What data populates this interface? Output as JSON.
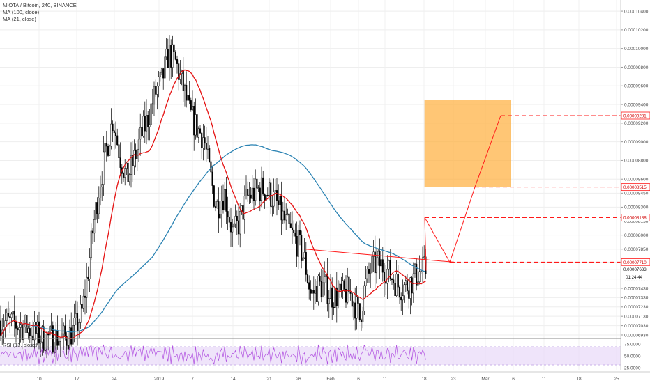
{
  "legend": {
    "symbol": "MIOTA / Bitcoin, 240, BINANCE",
    "ma100": "MA (100, close)",
    "ma21": "MA (21, close)",
    "rsi": "RSI (13, close)"
  },
  "colors": {
    "candle": "#000000",
    "ma21": "#e51212",
    "ma100": "#2b83b3",
    "drawing": "#ff1a1a",
    "target_box": "#ffb347",
    "rsi_band": "#e8d8f8",
    "rsi_line": "#b04ee0"
  },
  "chart_data": [
    {
      "type": "candlestick",
      "y_axis_ticks": [
        "0.00010400",
        "0.00010200",
        "0.00010000",
        "0.00009800",
        "0.00009600",
        "0.00009400",
        "0.00009200",
        "0.00009000",
        "0.00008800",
        "0.00008600",
        "0.00008450",
        "0.00008300",
        "0.00008150",
        "0.00008000",
        "0.00007850",
        "0.00007710",
        "0.00007633",
        "0.00007530",
        "0.00007430",
        "0.00007330",
        "0.00007230",
        "0.00007130",
        "0.00007030",
        "0.00006930"
      ],
      "x_axis_ticks": [
        "10",
        "17",
        "24",
        "2019",
        "7",
        "14",
        "21",
        "26",
        "Feb",
        "6",
        "11",
        "18",
        "23",
        "Mar",
        "6",
        "11",
        "18",
        "25"
      ],
      "price_labels": [
        {
          "text": "0.00009281",
          "value": 9.281e-05,
          "style": "red"
        },
        {
          "text": "0.00008515",
          "value": 8.515e-05,
          "style": "red"
        },
        {
          "text": "0.00008188",
          "value": 8.188e-05,
          "style": "red"
        },
        {
          "text": "0.00007710",
          "value": 7.71e-05,
          "style": "red"
        },
        {
          "text": "0.00007633",
          "value": 7.633e-05,
          "style": "current"
        },
        {
          "text": "01:24:44",
          "value": 7.55e-05,
          "style": "countdown"
        }
      ],
      "target_zone": {
        "from_value": 8.515e-05,
        "to_value": 9.45e-05
      },
      "ylim": [
        6.9e-05,
        0.0001052
      ],
      "series": [
        {
          "name": "MA (21, close)"
        },
        {
          "name": "MA (100, close)"
        }
      ]
    },
    {
      "type": "line",
      "name": "RSI (13, close)",
      "y_axis_ticks": [
        "75.0000",
        "50.0000",
        "25.0000"
      ],
      "band": [
        30,
        70
      ]
    }
  ]
}
